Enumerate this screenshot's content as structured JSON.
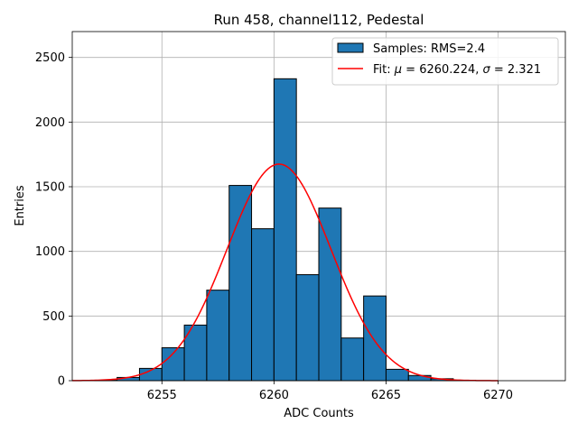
{
  "chart_data": {
    "type": "bar",
    "title": "Run 458, channel112, Pedestal",
    "xlabel": "ADC Counts",
    "ylabel": "Entries",
    "xlim": [
      6251.0,
      6273.0
    ],
    "ylim": [
      0,
      2700
    ],
    "grid": true,
    "legend_position": "top-right",
    "x_ticks": [
      6255,
      6260,
      6265,
      6270
    ],
    "y_ticks": [
      0,
      500,
      1000,
      1500,
      2000,
      2500
    ],
    "bin_width": 1,
    "histogram": {
      "name": "Samples: RMS=2.4",
      "color": "#1f77b4",
      "edge_color": "#000000",
      "bins": [
        {
          "x0": 6252,
          "count": 3
        },
        {
          "x0": 6253,
          "count": 25
        },
        {
          "x0": 6254,
          "count": 95
        },
        {
          "x0": 6255,
          "count": 255
        },
        {
          "x0": 6256,
          "count": 430
        },
        {
          "x0": 6257,
          "count": 700
        },
        {
          "x0": 6258,
          "count": 1510
        },
        {
          "x0": 6259,
          "count": 1175
        },
        {
          "x0": 6260,
          "count": 2335
        },
        {
          "x0": 6261,
          "count": 820
        },
        {
          "x0": 6262,
          "count": 1335
        },
        {
          "x0": 6263,
          "count": 330
        },
        {
          "x0": 6264,
          "count": 655
        },
        {
          "x0": 6265,
          "count": 88
        },
        {
          "x0": 6266,
          "count": 40
        },
        {
          "x0": 6267,
          "count": 15
        },
        {
          "x0": 6268,
          "count": 3
        }
      ]
    },
    "fit": {
      "name_prefix": "Fit: ",
      "name_mu": "μ",
      "name_mid": " = 6260.224, ",
      "name_sigma": "σ",
      "name_suffix": " = 2.321",
      "color": "#ff0000",
      "mu": 6260.224,
      "sigma": 2.321,
      "amplitude": 1675,
      "x_range": [
        6251,
        6270
      ]
    }
  }
}
